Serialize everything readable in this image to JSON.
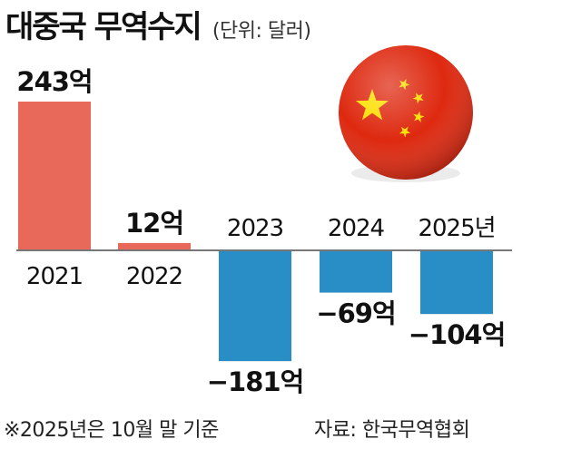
{
  "header": {
    "title": "대중국 무역수지",
    "unit_label": "(단위: 달러)"
  },
  "footer": {
    "footnote": "※2025년은 10월 말 기준",
    "source": "자료: 한국무역협회"
  },
  "chart_data": {
    "type": "bar",
    "title": "대중국 무역수지",
    "unit": "(단위: 달러)",
    "categories": [
      "2021",
      "2022",
      "2023",
      "2024",
      "2025년"
    ],
    "values": [
      243,
      12,
      -181,
      -69,
      -104
    ],
    "value_labels": [
      "243억",
      "12억",
      "−181억",
      "−69억",
      "−104억"
    ],
    "ylim": [
      -181,
      243
    ],
    "grid": false,
    "legend": "none",
    "colors": {
      "positive": "#e8695a",
      "negative": "#2a8ec6",
      "axis": "#777777"
    }
  },
  "decoration": {
    "flag_icon": "china-flag-sphere-icon",
    "colors": {
      "flag_red": "#de2910",
      "flag_star": "#ffde00"
    }
  }
}
